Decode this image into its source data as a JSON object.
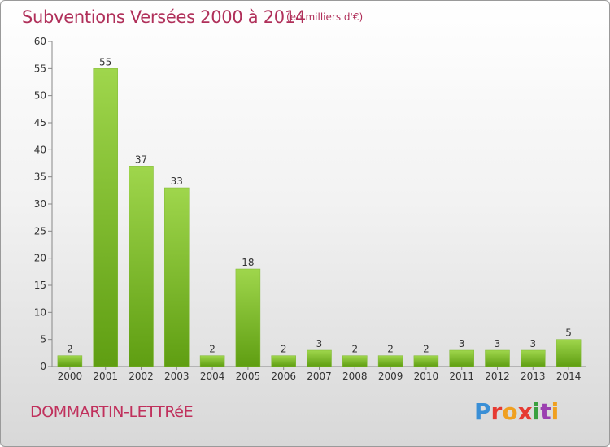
{
  "header": {
    "title": "Subventions Versées 2000 à 2014",
    "subtitle": "(en milliers d'€)"
  },
  "footer": {
    "commune": "DOMMARTIN-LETTRéE",
    "logo": "Proxiti"
  },
  "colors": {
    "bar_top": "#9fd64c",
    "bar_bottom": "#5f9e12",
    "title": "#b0305a"
  },
  "chart_data": {
    "type": "bar",
    "title": "Subventions Versées 2000 à 2014",
    "subtitle": "(en milliers d'€)",
    "categories": [
      "2000",
      "2001",
      "2002",
      "2003",
      "2004",
      "2005",
      "2006",
      "2007",
      "2008",
      "2009",
      "2010",
      "2011",
      "2012",
      "2013",
      "2014"
    ],
    "values": [
      2,
      55,
      37,
      33,
      2,
      18,
      2,
      3,
      2,
      2,
      2,
      3,
      3,
      3,
      5
    ],
    "yticks": [
      0,
      5,
      10,
      15,
      20,
      25,
      30,
      35,
      40,
      45,
      50,
      55,
      60
    ],
    "ylim": [
      0,
      60
    ],
    "xlabel": "",
    "ylabel": "",
    "grid": false,
    "data_labels": true
  }
}
